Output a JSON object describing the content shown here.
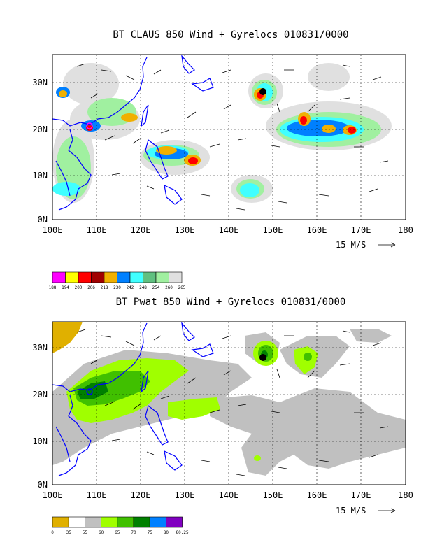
{
  "panels": [
    {
      "title": "BT CLAUS 850 Wind + Gyrelocs 010831/0000",
      "x_ticks": [
        "100E",
        "110E",
        "120E",
        "130E",
        "140E",
        "150E",
        "160E",
        "170E",
        "180"
      ],
      "y_ticks": [
        "30N",
        "20N",
        "10N",
        "0N"
      ],
      "vector_ref": "15 M/S",
      "colorbar": {
        "colors": [
          "#ff00ff",
          "#ffff00",
          "#ff0000",
          "#a00000",
          "#f0b000",
          "#0080ff",
          "#40ffff",
          "#60c080",
          "#a0f0a0",
          "#e0e0e0"
        ],
        "labels": [
          "188",
          "194",
          "200",
          "206",
          "218",
          "230",
          "242",
          "248",
          "254",
          "260",
          "265"
        ]
      }
    },
    {
      "title": "BT Pwat 850 Wind + Gyrelocs 010831/0000",
      "x_ticks": [
        "100E",
        "110E",
        "120E",
        "130E",
        "140E",
        "150E",
        "160E",
        "170E",
        "180"
      ],
      "y_ticks": [
        "30N",
        "20N",
        "10N",
        "0N"
      ],
      "vector_ref": "15 M/S",
      "colorbar": {
        "colors": [
          "#e0b000",
          "#ffffff",
          "#c0c0c0",
          "#a0ff00",
          "#40c000",
          "#008000",
          "#0080ff",
          "#8000c0"
        ],
        "labels": [
          "0",
          "35",
          "55",
          "60",
          "65",
          "70",
          "75",
          "80",
          "80.25"
        ]
      }
    }
  ],
  "colors": {
    "coast": "#0000ff",
    "frame": "#000000"
  }
}
